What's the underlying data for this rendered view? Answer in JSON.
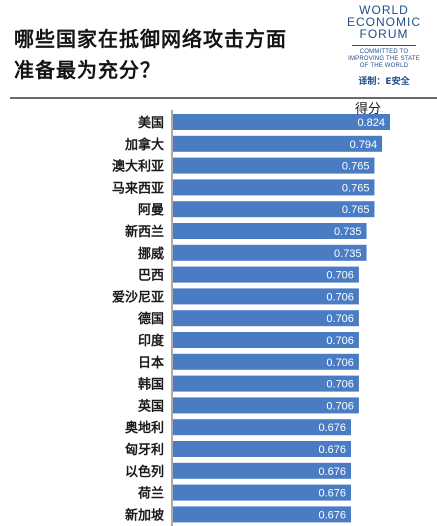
{
  "header": {
    "title_line1": "哪些国家在抵御网络攻击方面",
    "title_line2": "准备最为充分？"
  },
  "logo": {
    "line1": "WORLD",
    "line2": "ECONOMIC",
    "line3": "FORUM",
    "tagline1": "COMMITTED TO",
    "tagline2": "IMPROVING THE STATE",
    "tagline3": "OF THE WORLD",
    "credit": "译制：E安全"
  },
  "colors": {
    "bar": "#4a7cc4",
    "axis": "#555555"
  },
  "chart_data": {
    "type": "bar",
    "orientation": "horizontal",
    "title": "哪些国家在抵御网络攻击方面准备最为充分？",
    "xlabel": "得分",
    "categories": [
      "美国",
      "加拿大",
      "澳大利亚",
      "马来西亚",
      "阿曼",
      "新西兰",
      "挪威",
      "巴西",
      "爱沙尼亚",
      "德国",
      "印度",
      "日本",
      "韩国",
      "英国",
      "奥地利",
      "匈牙利",
      "以色列",
      "荷兰",
      "新加坡"
    ],
    "values": [
      0.824,
      0.794,
      0.765,
      0.765,
      0.765,
      0.735,
      0.735,
      0.706,
      0.706,
      0.706,
      0.706,
      0.706,
      0.706,
      0.706,
      0.676,
      0.676,
      0.676,
      0.676,
      0.676
    ],
    "value_labels": [
      "0.824",
      "0.794",
      "0.765",
      "0.765",
      "0.765",
      "0.735",
      "0.735",
      "0.706",
      "0.706",
      "0.706",
      "0.706",
      "0.706",
      "0.706",
      "0.706",
      "0.676",
      "0.676",
      "0.676",
      "0.676",
      "0.676"
    ],
    "xlim": [
      0,
      0.824
    ],
    "grid": false,
    "legend": "none"
  }
}
